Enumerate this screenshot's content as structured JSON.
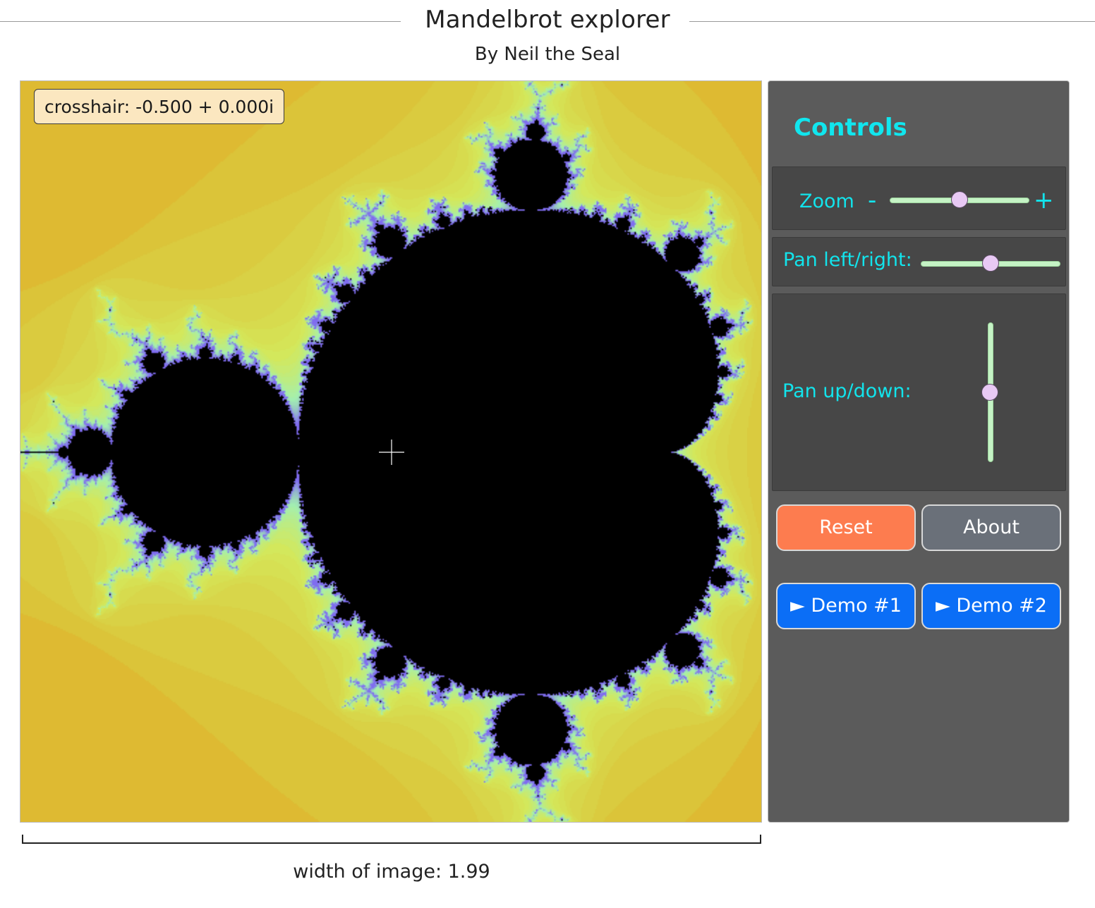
{
  "header": {
    "title": "Mandelbrot explorer",
    "subtitle": "By Neil the Seal"
  },
  "viewer": {
    "crosshair_readout": "crosshair: -0.500 + 0.000i",
    "center_re": -0.5,
    "center_im": 0.0,
    "width_value": 1.99,
    "palette": {
      "outer": "#e3a421",
      "mid": "#dbc53a",
      "inner": "#d4e85a",
      "edge": "#a3f0b0",
      "boundary": "#7f6cf0",
      "set": "#000000"
    }
  },
  "controls": {
    "heading": "Controls",
    "zoom": {
      "label": "Zoom",
      "minus": "-",
      "plus": "+",
      "level": 0.5
    },
    "pan_lr": {
      "label": "Pan left/right:",
      "level": 0.5
    },
    "pan_ud": {
      "label": "Pan up/down:",
      "level": 0.5
    },
    "buttons": {
      "reset": "Reset",
      "about": "About",
      "demo1": "► Demo #1",
      "demo2": "► Demo #2"
    },
    "colors": {
      "accent_text": "#12e4ec",
      "reset": "#fd7c4f",
      "about": "#6a7079",
      "demo": "#0b6ef6"
    }
  },
  "footer": {
    "width_label": "width of image: 1.99"
  }
}
